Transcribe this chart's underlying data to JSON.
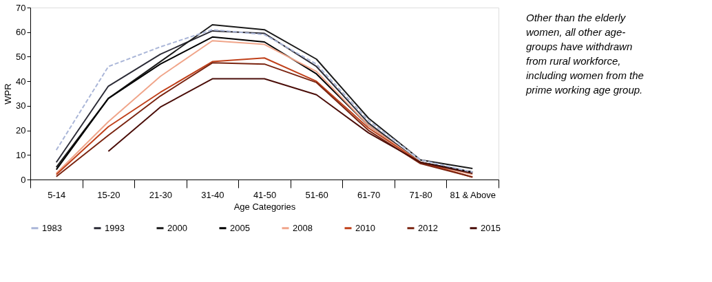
{
  "chart_data": {
    "type": "line",
    "xlabel": "Age Categories",
    "ylabel": "WPR",
    "categories": [
      "5-14",
      "15-20",
      "21-30",
      "31-40",
      "41-50",
      "51-60",
      "61-70",
      "71-80",
      "81 & Above"
    ],
    "ylim": [
      0,
      70
    ],
    "yticks": [
      0,
      10,
      20,
      30,
      40,
      50,
      60,
      70
    ],
    "grid": false,
    "legend": "bottom",
    "line_style": "solid",
    "series": [
      {
        "name": "1983",
        "color": "#aab6d8",
        "line_style": "dashed",
        "values": [
          12,
          46,
          54,
          61,
          59,
          47,
          24,
          8,
          3
        ]
      },
      {
        "name": "1993",
        "color": "#2b2b36",
        "values": [
          7,
          38,
          51,
          60.5,
          59.5,
          46,
          23,
          7,
          3
        ]
      },
      {
        "name": "2000",
        "color": "#1a1a1a",
        "values": [
          5,
          33,
          48,
          63,
          61,
          49,
          25,
          8,
          4.5
        ]
      },
      {
        "name": "2005",
        "color": "#000000",
        "values": [
          4,
          33,
          47,
          58,
          56,
          43,
          22,
          7,
          3
        ]
      },
      {
        "name": "2008",
        "color": "#f0a58a",
        "values": [
          2.5,
          23.5,
          42,
          56.5,
          55,
          44,
          22,
          7,
          2
        ]
      },
      {
        "name": "2010",
        "color": "#c0401a",
        "values": [
          2,
          21.5,
          35.5,
          48,
          49.5,
          40,
          21,
          7,
          1
        ]
      },
      {
        "name": "2012",
        "color": "#7a2410",
        "values": [
          1.2,
          18,
          34,
          47.5,
          47,
          39.5,
          20,
          6.5,
          1
        ]
      },
      {
        "name": "2015",
        "color": "#4a0d08",
        "values": [
          null,
          11.5,
          29.5,
          41,
          41,
          34.5,
          19,
          7,
          2.5
        ]
      }
    ],
    "annotations": [
      "Other than the elderly women, all other age-groups have withdrawn from rural workforce, including women from the prime working age group."
    ]
  }
}
